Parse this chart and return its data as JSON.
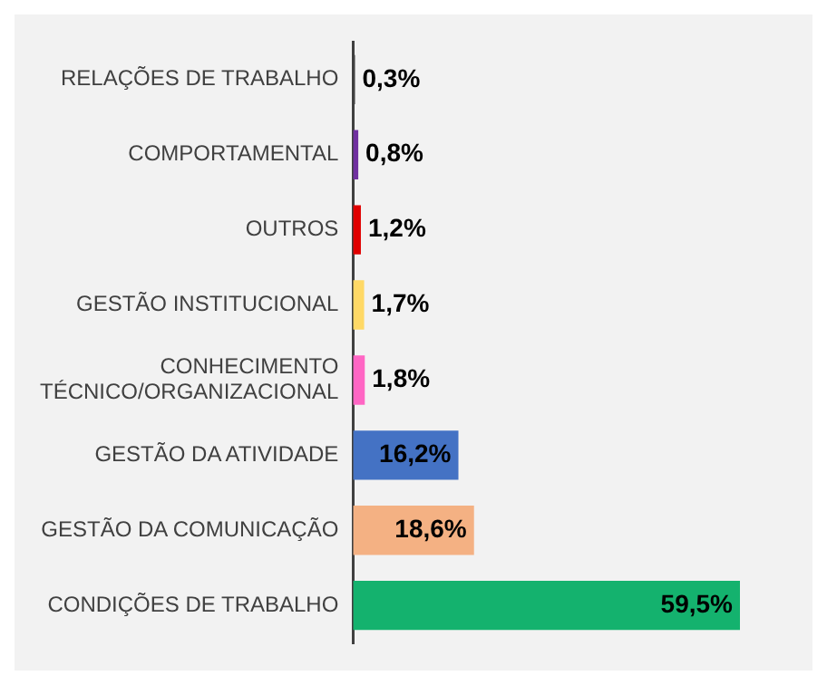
{
  "chart_data": {
    "type": "bar",
    "orientation": "horizontal",
    "categories": [
      "RELAÇÕES DE TRABALHO",
      "COMPORTAMENTAL",
      "OUTROS",
      "GESTÃO INSTITUCIONAL",
      "CONHECIMENTO TÉCNICO/ORGANIZACIONAL",
      "GESTÃO DA ATIVIDADE",
      "GESTÃO DA COMUNICAÇÃO",
      "CONDIÇÕES DE TRABALHO"
    ],
    "values": [
      0.3,
      0.8,
      1.2,
      1.7,
      1.8,
      16.2,
      18.6,
      59.5
    ],
    "colors": [
      "#404040",
      "#7030a0",
      "#e00000",
      "#ffd966",
      "#ff66c4",
      "#4472c4",
      "#f4b183",
      "#14b26e"
    ],
    "value_labels": [
      "0,3%",
      "0,8%",
      "1,2%",
      "1,7%",
      "1,8%",
      "16,2%",
      "18,6%",
      "59,5%"
    ],
    "grid": false,
    "legend": false
  }
}
